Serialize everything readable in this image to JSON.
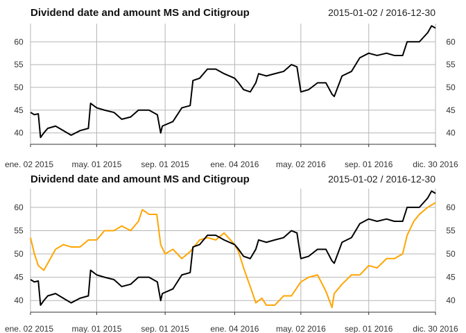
{
  "colors": {
    "series_ms": "#000000",
    "series_citi": "#ffa500",
    "grid": "#b5b5b5"
  },
  "chart_data": [
    {
      "type": "line",
      "title": "Dividend date and amount MS and Citigroup",
      "date_range": "2015-01-02 / 2016-12-30",
      "x_tick_labels": [
        "ene. 02 2015",
        "may. 01 2015",
        "sep. 01 2015",
        "ene. 04 2016",
        "may. 02 2016",
        "sep. 01 2016",
        "dic. 30 2016"
      ],
      "x_tick_dates": [
        "2015-01-02",
        "2015-05-01",
        "2015-09-01",
        "2016-01-04",
        "2016-05-02",
        "2016-09-01",
        "2016-12-30"
      ],
      "y_ticks": [
        40,
        45,
        50,
        55,
        60
      ],
      "ylim": [
        37.5,
        64
      ],
      "grid": true,
      "series": [
        {
          "key": "ms",
          "x": [
            "2015-01-02",
            "2015-01-09",
            "2015-01-16",
            "2015-01-20",
            "2015-01-26",
            "2015-02-02",
            "2015-02-16",
            "2015-03-02",
            "2015-03-16",
            "2015-04-01",
            "2015-04-16",
            "2015-04-20",
            "2015-05-01",
            "2015-05-15",
            "2015-06-01",
            "2015-06-15",
            "2015-07-01",
            "2015-07-15",
            "2015-08-03",
            "2015-08-18",
            "2015-08-24",
            "2015-08-27",
            "2015-09-15",
            "2015-10-01",
            "2015-10-16",
            "2015-10-21",
            "2015-11-02",
            "2015-11-16",
            "2015-12-01",
            "2015-12-16",
            "2016-01-04",
            "2016-01-11",
            "2016-01-20",
            "2016-02-01",
            "2016-02-11",
            "2016-02-16",
            "2016-03-01",
            "2016-03-16",
            "2016-04-01",
            "2016-04-15",
            "2016-04-25",
            "2016-05-02",
            "2016-05-16",
            "2016-06-01",
            "2016-06-16",
            "2016-06-27",
            "2016-07-01",
            "2016-07-15",
            "2016-08-01",
            "2016-08-16",
            "2016-09-01",
            "2016-09-16",
            "2016-10-03",
            "2016-10-17",
            "2016-11-01",
            "2016-11-09",
            "2016-11-21",
            "2016-12-01",
            "2016-12-16",
            "2016-12-23",
            "2016-12-30"
          ],
          "values": [
            44.5,
            44,
            44.2,
            39,
            40,
            41,
            41.5,
            40.5,
            39.5,
            40.5,
            41,
            46.5,
            45.5,
            45,
            44.5,
            43,
            43.5,
            45,
            45,
            44,
            40,
            41.5,
            42.5,
            45.5,
            46,
            51.5,
            52,
            54,
            54,
            53,
            52,
            51,
            49.5,
            49,
            51,
            53,
            52.5,
            53,
            53.5,
            55,
            54.5,
            49,
            49.5,
            51,
            51,
            48.5,
            48,
            52.5,
            53.5,
            56.5,
            57.5,
            57,
            57.5,
            57,
            57,
            60,
            60,
            60,
            62,
            63.5,
            63
          ]
        }
      ]
    },
    {
      "type": "line",
      "title": "Dividend date and amount MS and Citigroup",
      "date_range": "2015-01-02 / 2016-12-30",
      "x_tick_labels": [
        "ene. 02 2015",
        "may. 01 2015",
        "sep. 01 2015",
        "ene. 04 2016",
        "may. 02 2016",
        "sep. 01 2016",
        "dic. 30 2016"
      ],
      "x_tick_dates": [
        "2015-01-02",
        "2015-05-01",
        "2015-09-01",
        "2016-01-04",
        "2016-05-02",
        "2016-09-01",
        "2016-12-30"
      ],
      "y_ticks": [
        40,
        45,
        50,
        55,
        60
      ],
      "ylim": [
        37.5,
        64
      ],
      "grid": true,
      "series": [
        {
          "key": "ms",
          "x": [
            "2015-01-02",
            "2015-01-09",
            "2015-01-16",
            "2015-01-20",
            "2015-01-26",
            "2015-02-02",
            "2015-02-16",
            "2015-03-02",
            "2015-03-16",
            "2015-04-01",
            "2015-04-16",
            "2015-04-20",
            "2015-05-01",
            "2015-05-15",
            "2015-06-01",
            "2015-06-15",
            "2015-07-01",
            "2015-07-15",
            "2015-08-03",
            "2015-08-18",
            "2015-08-24",
            "2015-08-27",
            "2015-09-15",
            "2015-10-01",
            "2015-10-16",
            "2015-10-21",
            "2015-11-02",
            "2015-11-16",
            "2015-12-01",
            "2015-12-16",
            "2016-01-04",
            "2016-01-11",
            "2016-01-20",
            "2016-02-01",
            "2016-02-11",
            "2016-02-16",
            "2016-03-01",
            "2016-03-16",
            "2016-04-01",
            "2016-04-15",
            "2016-04-25",
            "2016-05-02",
            "2016-05-16",
            "2016-06-01",
            "2016-06-16",
            "2016-06-27",
            "2016-07-01",
            "2016-07-15",
            "2016-08-01",
            "2016-08-16",
            "2016-09-01",
            "2016-09-16",
            "2016-10-03",
            "2016-10-17",
            "2016-11-01",
            "2016-11-09",
            "2016-11-21",
            "2016-12-01",
            "2016-12-16",
            "2016-12-23",
            "2016-12-30"
          ],
          "values": [
            44.5,
            44,
            44.2,
            39,
            40,
            41,
            41.5,
            40.5,
            39.5,
            40.5,
            41,
            46.5,
            45.5,
            45,
            44.5,
            43,
            43.5,
            45,
            45,
            44,
            40,
            41.5,
            42.5,
            45.5,
            46,
            51.5,
            52,
            54,
            54,
            53,
            52,
            51,
            49.5,
            49,
            51,
            53,
            52.5,
            53,
            53.5,
            55,
            54.5,
            49,
            49.5,
            51,
            51,
            48.5,
            48,
            52.5,
            53.5,
            56.5,
            57.5,
            57,
            57.5,
            57,
            57,
            60,
            60,
            60,
            62,
            63.5,
            63
          ]
        },
        {
          "key": "citi",
          "x": [
            "2015-01-02",
            "2015-01-09",
            "2015-01-16",
            "2015-01-26",
            "2015-02-02",
            "2015-02-16",
            "2015-03-02",
            "2015-03-16",
            "2015-04-01",
            "2015-04-16",
            "2015-05-01",
            "2015-05-15",
            "2015-06-01",
            "2015-06-15",
            "2015-07-01",
            "2015-07-15",
            "2015-07-22",
            "2015-08-03",
            "2015-08-17",
            "2015-08-24",
            "2015-09-01",
            "2015-09-15",
            "2015-10-01",
            "2015-10-16",
            "2015-11-02",
            "2015-11-16",
            "2015-12-01",
            "2015-12-16",
            "2016-01-04",
            "2016-01-11",
            "2016-01-20",
            "2016-02-01",
            "2016-02-11",
            "2016-02-22",
            "2016-03-01",
            "2016-03-16",
            "2016-04-01",
            "2016-04-15",
            "2016-05-02",
            "2016-05-16",
            "2016-06-01",
            "2016-06-16",
            "2016-06-27",
            "2016-07-01",
            "2016-07-15",
            "2016-08-01",
            "2016-08-16",
            "2016-09-01",
            "2016-09-16",
            "2016-10-03",
            "2016-10-17",
            "2016-11-01",
            "2016-11-09",
            "2016-11-21",
            "2016-12-01",
            "2016-12-16",
            "2016-12-30"
          ],
          "values": [
            53.5,
            50,
            47.5,
            46.5,
            48,
            51,
            52,
            51.5,
            51.5,
            53,
            53,
            55,
            55,
            56,
            55,
            57,
            59.5,
            58.5,
            58.5,
            52,
            50,
            51,
            49,
            50.5,
            53,
            53.5,
            53,
            54.5,
            52,
            50.5,
            47,
            43,
            39.5,
            40.5,
            39,
            39,
            41,
            41,
            44,
            45,
            45.5,
            42,
            38.5,
            41.5,
            43.5,
            45.5,
            45.5,
            47.5,
            47,
            49,
            49,
            50,
            54,
            57,
            58.5,
            60,
            61
          ]
        }
      ]
    }
  ]
}
